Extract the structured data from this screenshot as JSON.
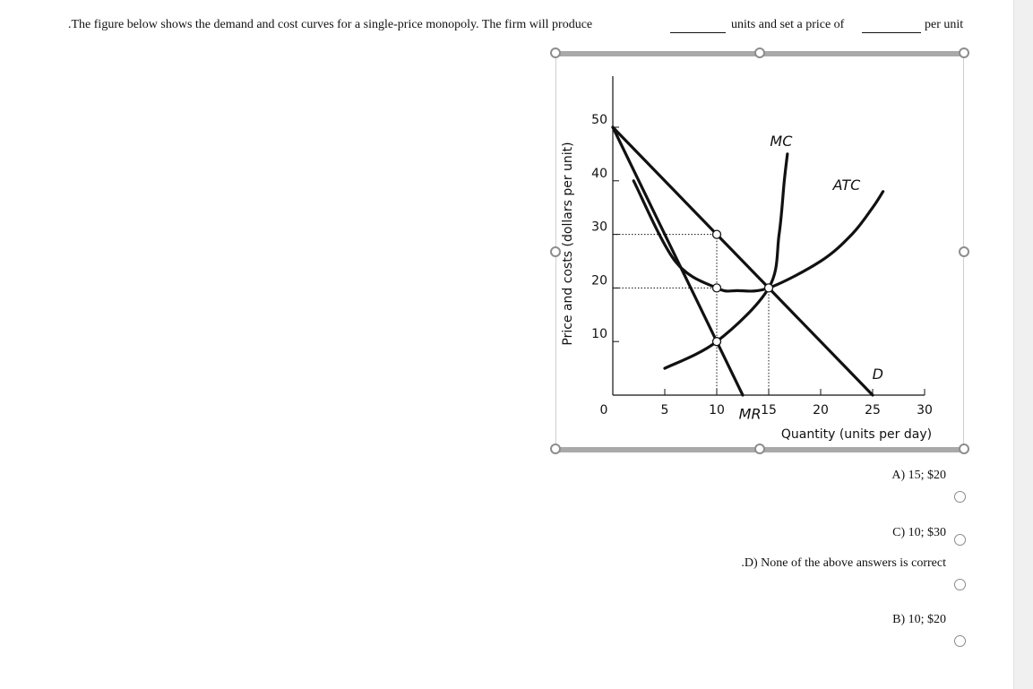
{
  "question": {
    "part1": ".The figure below shows the demand and cost curves for a single-price monopoly. The firm will produce",
    "part2": "units and set a price of",
    "part3": "per unit"
  },
  "answers": [
    {
      "label": "A) 15; $20",
      "selected": false
    },
    {
      "label": "C) 10; $30",
      "selected": false
    },
    {
      "label": ".D) None of the above answers is correct",
      "selected": false
    },
    {
      "label": "B) 10; $20",
      "selected": false
    }
  ],
  "chart_data": {
    "type": "line",
    "title": "",
    "xlabel": "Quantity (units per day)",
    "ylabel": "Price and costs (dollars per unit)",
    "xlim": [
      0,
      30
    ],
    "ylim": [
      0,
      50
    ],
    "x_ticks": [
      "0",
      "5",
      "10",
      "15",
      "20",
      "25",
      "30"
    ],
    "y_ticks": [
      "10",
      "20",
      "30",
      "40",
      "50"
    ],
    "series": [
      {
        "name": "D",
        "points": [
          [
            0,
            50
          ],
          [
            10,
            30
          ],
          [
            15,
            20
          ],
          [
            25,
            0
          ]
        ]
      },
      {
        "name": "MR",
        "points": [
          [
            0,
            50
          ],
          [
            10,
            10
          ],
          [
            12.5,
            0
          ]
        ]
      },
      {
        "name": "MC",
        "points": [
          [
            5,
            5
          ],
          [
            10,
            10
          ],
          [
            15,
            20
          ],
          [
            16,
            30
          ],
          [
            16.5,
            40
          ],
          [
            16.8,
            45
          ]
        ]
      },
      {
        "name": "ATC",
        "points": [
          [
            2,
            40
          ],
          [
            6,
            25
          ],
          [
            10,
            20
          ],
          [
            12,
            19.5
          ],
          [
            15,
            20
          ],
          [
            20,
            25
          ],
          [
            23,
            30
          ],
          [
            25,
            35
          ],
          [
            26,
            38
          ]
        ]
      }
    ],
    "annotations": [
      {
        "point": [
          10,
          30
        ]
      },
      {
        "point": [
          10,
          20
        ]
      },
      {
        "point": [
          15,
          20
        ]
      },
      {
        "point": [
          10,
          10
        ]
      }
    ],
    "guides": [
      {
        "from": [
          0,
          30
        ],
        "to": [
          10,
          30
        ]
      },
      {
        "from": [
          0,
          20
        ],
        "to": [
          10,
          20
        ]
      },
      {
        "from": [
          10,
          30
        ],
        "to": [
          10,
          0
        ]
      },
      {
        "from": [
          15,
          20
        ],
        "to": [
          15,
          0
        ]
      }
    ]
  }
}
